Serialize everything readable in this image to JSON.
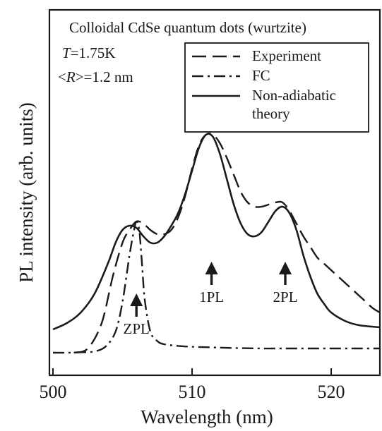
{
  "chart_data": {
    "type": "line",
    "title": "Colloidal CdSe quantum dots (wurtzite)",
    "xlabel": "Wavelength (nm)",
    "ylabel": "PL intensity  (arb. units)",
    "xlim": [
      500,
      523.5
    ],
    "ylim": [
      0,
      1.1
    ],
    "xticks": [
      500,
      510,
      520
    ],
    "grid": false,
    "legend_position": "top-right",
    "annotations": {
      "temperature": {
        "symbol": "T",
        "value": "=1.75K"
      },
      "radius": {
        "open": "<",
        "symbol": "R",
        "close": ">",
        "value": "=1.2 nm"
      }
    },
    "peak_labels": [
      {
        "label": "ZPL",
        "x": 506.0,
        "arrow_tip": 0.28,
        "arrow_tail": 0.17
      },
      {
        "label": "1PL",
        "x": 511.4,
        "arrow_tip": 0.43,
        "arrow_tail": 0.32
      },
      {
        "label": "2PL",
        "x": 516.7,
        "arrow_tip": 0.43,
        "arrow_tail": 0.32
      }
    ],
    "series": [
      {
        "name": "Experiment",
        "style": "dashed",
        "x": [
          501.5,
          502.5,
          503.5,
          504.3,
          505.0,
          505.5,
          506.0,
          506.5,
          507.0,
          507.5,
          508.0,
          508.5,
          509.0,
          509.5,
          510.0,
          510.5,
          511.0,
          511.5,
          512.0,
          512.5,
          513.0,
          513.5,
          514.0,
          514.5,
          515.0,
          515.5,
          516.0,
          516.5,
          517.0,
          517.5,
          518.0,
          518.5,
          519.0,
          519.5,
          520.0,
          520.5,
          521.0,
          521.5,
          522.0,
          522.5,
          523.0,
          523.5
        ],
        "y": [
          0.0,
          0.02,
          0.14,
          0.36,
          0.52,
          0.58,
          0.62,
          0.61,
          0.58,
          0.56,
          0.56,
          0.58,
          0.64,
          0.74,
          0.87,
          0.98,
          1.03,
          1.03,
          0.99,
          0.92,
          0.84,
          0.76,
          0.71,
          0.69,
          0.69,
          0.7,
          0.71,
          0.71,
          0.67,
          0.61,
          0.55,
          0.5,
          0.45,
          0.42,
          0.39,
          0.36,
          0.33,
          0.3,
          0.27,
          0.24,
          0.21,
          0.19
        ]
      },
      {
        "name": "FC",
        "style": "dashdot",
        "x": [
          500.0,
          501.0,
          502.0,
          503.0,
          503.8,
          504.5,
          505.0,
          505.5,
          505.8,
          506.0,
          506.2,
          506.4,
          506.6,
          507.0,
          507.5,
          508.0,
          509.0,
          510.0,
          511.0,
          512.0,
          513.0,
          514.0,
          515.0,
          516.0,
          517.0,
          518.0,
          519.0,
          520.0,
          521.0,
          522.0,
          523.5
        ],
        "y": [
          0.0,
          0.0,
          0.002,
          0.006,
          0.03,
          0.1,
          0.24,
          0.46,
          0.57,
          0.62,
          0.58,
          0.42,
          0.25,
          0.1,
          0.055,
          0.04,
          0.032,
          0.028,
          0.026,
          0.024,
          0.022,
          0.021,
          0.02,
          0.02,
          0.02,
          0.02,
          0.02,
          0.02,
          0.02,
          0.02,
          0.02
        ]
      },
      {
        "name": "Non-adiabatic theory",
        "style": "solid",
        "x": [
          500.0,
          501.0,
          502.0,
          503.0,
          504.0,
          504.5,
          505.0,
          505.5,
          506.0,
          506.5,
          507.0,
          507.5,
          508.0,
          508.5,
          509.0,
          509.5,
          510.0,
          510.5,
          511.0,
          511.5,
          512.0,
          512.5,
          513.0,
          513.5,
          514.0,
          514.5,
          515.0,
          515.5,
          516.0,
          516.5,
          517.0,
          517.5,
          518.0,
          518.5,
          519.0,
          519.5,
          520.0,
          521.0,
          522.0,
          523.5
        ],
        "y": [
          0.11,
          0.14,
          0.19,
          0.28,
          0.43,
          0.52,
          0.58,
          0.6,
          0.59,
          0.55,
          0.52,
          0.52,
          0.55,
          0.6,
          0.66,
          0.75,
          0.86,
          0.97,
          1.03,
          1.02,
          0.94,
          0.82,
          0.7,
          0.61,
          0.56,
          0.55,
          0.57,
          0.62,
          0.67,
          0.69,
          0.66,
          0.58,
          0.46,
          0.36,
          0.28,
          0.23,
          0.19,
          0.15,
          0.13,
          0.12
        ]
      }
    ]
  }
}
